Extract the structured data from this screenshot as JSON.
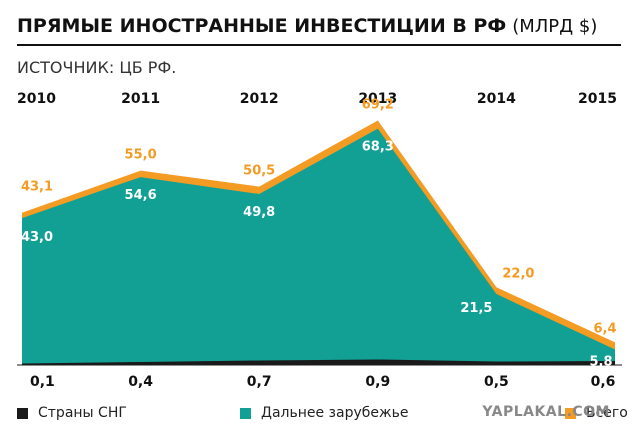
{
  "header": {
    "title": "ПРЯМЫЕ ИНОСТРАННЫЕ ИНВЕСТИЦИИ В РФ",
    "unit": "(МЛРД $)",
    "source": "ИСТОЧНИК: ЦБ РФ."
  },
  "chart_data": {
    "type": "area",
    "title": "ПРЯМЫЕ ИНОСТРАННЫЕ ИНВЕСТИЦИИ В РФ (МЛРД $)",
    "categories": [
      "2010",
      "2011",
      "2012",
      "2013",
      "2014",
      "2015"
    ],
    "series": [
      {
        "name": "Всего",
        "values": [
          43.1,
          55.0,
          50.5,
          69.2,
          22.0,
          6.4
        ],
        "labels": [
          "43,1",
          "55,0",
          "50,5",
          "69,2",
          "22,0",
          "6,4"
        ],
        "color": "#f39b22"
      },
      {
        "name": "Дальнее зарубежье",
        "values": [
          43.0,
          54.6,
          49.8,
          68.3,
          21.5,
          5.8
        ],
        "labels": [
          "43,0",
          "54,6",
          "49,8",
          "68,3",
          "21,5",
          "5,8"
        ],
        "color": "#12a095"
      },
      {
        "name": "Страны СНГ",
        "values": [
          0.1,
          0.4,
          0.7,
          0.9,
          0.5,
          0.6
        ],
        "labels": [
          "0,1",
          "0,4",
          "0,7",
          "0,9",
          "0,5",
          "0,6"
        ],
        "color": "#1a1a1a"
      }
    ],
    "ylim": [
      0,
      75
    ]
  },
  "legend": {
    "items": [
      {
        "label": "Страны СНГ",
        "color": "#1a1a1a"
      },
      {
        "label": "Дальнее зарубежье",
        "color": "#12a095"
      },
      {
        "label": "Всего",
        "color": "#f39b22"
      }
    ]
  },
  "watermark": "YAPLAKAL.COM"
}
